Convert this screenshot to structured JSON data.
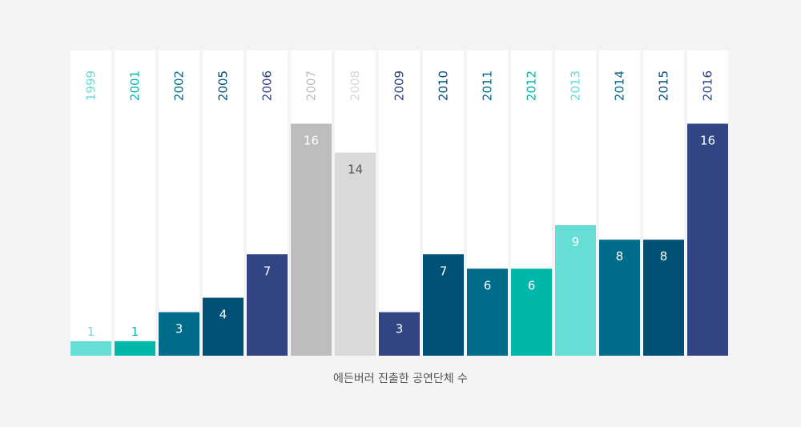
{
  "chart_data": {
    "type": "bar",
    "categories": [
      "1999",
      "2001",
      "2002",
      "2005",
      "2006",
      "2007",
      "2008",
      "2009",
      "2010",
      "2011",
      "2012",
      "2013",
      "2014",
      "2015",
      "2016"
    ],
    "values": [
      1,
      1,
      3,
      4,
      7,
      16,
      14,
      3,
      7,
      6,
      6,
      9,
      8,
      8,
      16
    ],
    "bar_colors": [
      "#66ddd5",
      "#00b8aa",
      "#006c8b",
      "#005176",
      "#314585",
      "#bdbdbd",
      "#d9d9d9",
      "#314585",
      "#005176",
      "#006c8b",
      "#00b8aa",
      "#66ddd5",
      "#006c8b",
      "#005176",
      "#314585"
    ],
    "year_label_colors": [
      "#66ddd5",
      "#00b8aa",
      "#006c8b",
      "#005176",
      "#314585",
      "#bdbdbd",
      "#d9d9d9",
      "#314585",
      "#005176",
      "#006c8b",
      "#00b8aa",
      "#66ddd5",
      "#006c8b",
      "#005176",
      "#314585"
    ],
    "value_label_colors": [
      "#66ddd5",
      "#00b8aa",
      "#ffffff",
      "#ffffff",
      "#ffffff",
      "#ffffff",
      "#555555",
      "#ffffff",
      "#ffffff",
      "#ffffff",
      "#ffffff",
      "#ffffff",
      "#ffffff",
      "#ffffff",
      "#ffffff"
    ],
    "ylim": [
      0,
      16
    ],
    "grid": false,
    "xlabel": "에든버러 진출한 공연단체 수"
  },
  "caption": "에든버러 진출한 공연단체 수"
}
